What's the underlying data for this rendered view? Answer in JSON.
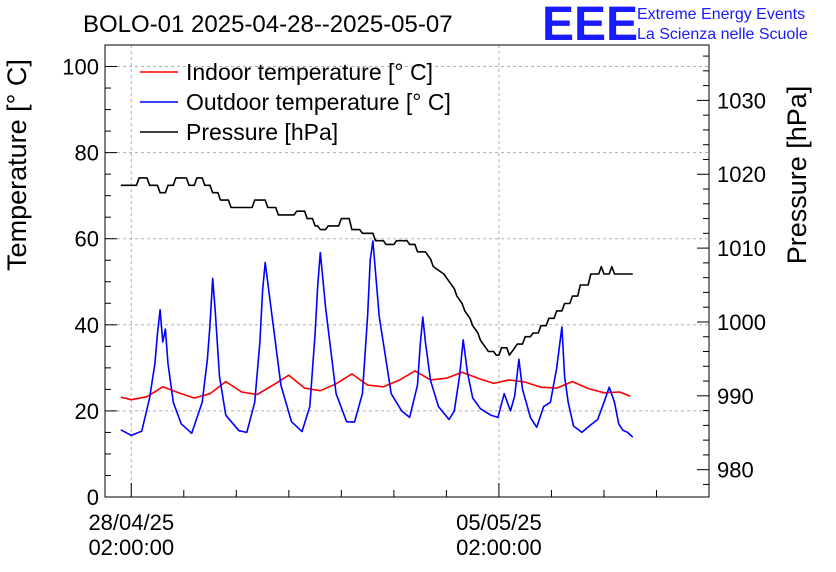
{
  "chart_data": {
    "type": "line",
    "title": "BOLO-01 2025-04-28--2025-05-07",
    "ylabel_left": "Temperature [° C]",
    "ylabel_right": "Pressure [hPa]",
    "ylim_left": [
      0,
      105
    ],
    "ylim_right": [
      976.3,
      1037.5
    ],
    "xlim_days": [
      -0.5,
      11.0
    ],
    "x_unit": "days since 28/04/25 02:00:00",
    "grid": true,
    "legend_position": "top-left",
    "left_ticks": [
      {
        "value": 0,
        "label": "0"
      },
      {
        "value": 20,
        "label": "20"
      },
      {
        "value": 40,
        "label": "40"
      },
      {
        "value": 60,
        "label": "60"
      },
      {
        "value": 80,
        "label": "80"
      },
      {
        "value": 100,
        "label": "100"
      }
    ],
    "right_ticks": [
      {
        "value": 980,
        "label": "980"
      },
      {
        "value": 990,
        "label": "990"
      },
      {
        "value": 1000,
        "label": "1000"
      },
      {
        "value": 1010,
        "label": "1010"
      },
      {
        "value": 1020,
        "label": "1020"
      },
      {
        "value": 1030,
        "label": "1030"
      }
    ],
    "x_ticks": [
      {
        "value": 0,
        "line1": "28/04/25",
        "line2": "02:00:00"
      },
      {
        "value": 7,
        "line1": "05/05/25",
        "line2": "02:00:00"
      }
    ],
    "series": [
      {
        "name": "Indoor temperature [° C]",
        "axis": "left",
        "color": "#ff0000",
        "x": [
          -0.2,
          0.0,
          0.3,
          0.6,
          0.9,
          1.2,
          1.5,
          1.8,
          2.1,
          2.4,
          2.7,
          3.0,
          3.3,
          3.6,
          3.9,
          4.2,
          4.5,
          4.8,
          5.1,
          5.4,
          5.7,
          6.0,
          6.3,
          6.6,
          6.9,
          7.2,
          7.5,
          7.8,
          8.1,
          8.4,
          8.7,
          9.0,
          9.3,
          9.5
        ],
        "values": [
          23.2,
          22.6,
          23.3,
          25.6,
          24.2,
          23.0,
          24.0,
          26.8,
          24.4,
          23.8,
          26.0,
          28.3,
          25.3,
          24.7,
          26.3,
          28.6,
          26.0,
          25.6,
          27.1,
          29.3,
          27.2,
          27.6,
          29.0,
          27.6,
          26.4,
          27.2,
          26.7,
          25.5,
          25.3,
          26.8,
          25.2,
          24.2,
          24.4,
          23.4
        ]
      },
      {
        "name": "Outdoor temperature [° C]",
        "axis": "left",
        "color": "#0000ff",
        "x": [
          -0.2,
          0.0,
          0.2,
          0.35,
          0.45,
          0.5,
          0.55,
          0.6,
          0.65,
          0.7,
          0.8,
          0.95,
          1.15,
          1.35,
          1.45,
          1.5,
          1.55,
          1.6,
          1.68,
          1.8,
          2.05,
          2.2,
          2.35,
          2.45,
          2.5,
          2.55,
          2.65,
          2.85,
          3.05,
          3.25,
          3.4,
          3.5,
          3.55,
          3.6,
          3.7,
          3.9,
          4.1,
          4.25,
          4.4,
          4.5,
          4.55,
          4.6,
          4.72,
          4.95,
          5.15,
          5.3,
          5.45,
          5.5,
          5.55,
          5.6,
          5.7,
          5.85,
          6.05,
          6.15,
          6.25,
          6.32,
          6.4,
          6.5,
          6.65,
          6.85,
          6.98,
          7.1,
          7.22,
          7.3,
          7.38,
          7.45,
          7.52,
          7.6,
          7.72,
          7.85,
          7.98,
          8.1,
          8.2,
          8.25,
          8.32,
          8.42,
          8.58,
          8.72,
          8.88,
          9.0,
          9.1,
          9.2,
          9.28,
          9.36,
          9.45,
          9.55
        ],
        "values": [
          15.6,
          14.3,
          15.3,
          23.0,
          31.0,
          38.0,
          43.5,
          36.0,
          39.0,
          31.0,
          22.0,
          17.0,
          14.8,
          22.0,
          32.0,
          40.0,
          50.8,
          43.0,
          28.0,
          19.0,
          15.4,
          15.0,
          22.0,
          36.0,
          48.0,
          54.5,
          45.0,
          26.0,
          17.5,
          15.2,
          21.0,
          38.0,
          49.0,
          56.8,
          44.0,
          24.0,
          17.5,
          17.4,
          24.0,
          42.0,
          55.0,
          59.5,
          42.0,
          24.0,
          20.0,
          18.5,
          26.0,
          35.0,
          41.8,
          36.0,
          27.0,
          21.0,
          18.0,
          20.0,
          28.0,
          36.5,
          29.0,
          23.0,
          20.5,
          19.0,
          18.5,
          24.0,
          20.0,
          23.5,
          32.0,
          25.0,
          22.0,
          18.5,
          16.2,
          21.0,
          22.0,
          30.0,
          39.5,
          28.0,
          22.0,
          16.5,
          15.0,
          16.5,
          18.0,
          22.0,
          25.5,
          22.0,
          17.0,
          15.5,
          15.0,
          13.9
        ]
      },
      {
        "name": "Pressure [hPa]",
        "axis": "right",
        "color": "#000000",
        "x": [
          -0.2,
          0.1,
          0.15,
          0.3,
          0.35,
          0.5,
          0.55,
          0.65,
          0.7,
          0.8,
          0.85,
          1.05,
          1.1,
          1.2,
          1.25,
          1.35,
          1.4,
          1.5,
          1.55,
          1.65,
          1.7,
          1.85,
          1.9,
          2.3,
          2.35,
          2.55,
          2.6,
          2.75,
          2.8,
          3.1,
          3.15,
          3.3,
          3.35,
          3.45,
          3.5,
          3.55,
          3.6,
          3.7,
          3.75,
          3.95,
          4.0,
          4.15,
          4.2,
          4.35,
          4.4,
          4.6,
          4.65,
          4.8,
          4.85,
          5.0,
          5.05,
          5.25,
          5.3,
          5.4,
          5.45,
          5.6,
          5.7,
          5.75,
          5.95,
          6.05,
          6.15,
          6.2,
          6.3,
          6.35,
          6.45,
          6.5,
          6.6,
          6.65,
          6.75,
          6.8,
          6.9,
          6.95,
          7.0,
          7.05,
          7.15,
          7.2,
          7.3,
          7.35,
          7.45,
          7.5,
          7.6,
          7.65,
          7.75,
          7.8,
          7.9,
          7.95,
          8.05,
          8.1,
          8.2,
          8.25,
          8.35,
          8.4,
          8.5,
          8.55,
          8.7,
          8.75,
          8.9,
          8.95,
          9.0,
          9.1,
          9.15,
          9.2,
          9.45,
          9.55
        ],
        "values": [
          1018.5,
          1018.5,
          1019.5,
          1019.5,
          1018.5,
          1018.5,
          1017.5,
          1017.5,
          1018.5,
          1018.5,
          1019.5,
          1019.5,
          1018.5,
          1018.5,
          1019.5,
          1019.5,
          1018.5,
          1018.5,
          1017.5,
          1017.5,
          1016.5,
          1016.5,
          1015.5,
          1015.5,
          1016.5,
          1016.5,
          1015.5,
          1015.5,
          1014.5,
          1014.5,
          1015.0,
          1015.0,
          1014.0,
          1014.0,
          1013.0,
          1013.0,
          1012.5,
          1012.5,
          1013.0,
          1013.0,
          1014.0,
          1014.0,
          1012.5,
          1012.5,
          1012.0,
          1012.0,
          1011.0,
          1011.0,
          1010.5,
          1010.5,
          1011.0,
          1011.0,
          1010.5,
          1010.5,
          1009.5,
          1009.5,
          1008.5,
          1007.5,
          1006.5,
          1005.5,
          1004.5,
          1003.5,
          1002.5,
          1001.5,
          1000.5,
          999.5,
          998.5,
          997.5,
          996.5,
          996.0,
          996.0,
          995.5,
          995.5,
          996.5,
          996.5,
          995.5,
          996.5,
          997.0,
          997.0,
          998.0,
          998.0,
          998.5,
          998.5,
          999.5,
          999.5,
          1000.5,
          1000.5,
          1001.5,
          1001.5,
          1002.5,
          1002.5,
          1003.5,
          1003.5,
          1005.0,
          1005.0,
          1006.5,
          1006.5,
          1007.5,
          1006.5,
          1006.5,
          1007.5,
          1006.5,
          1006.5,
          1006.5
        ]
      }
    ]
  },
  "logo": {
    "letters": "EEE",
    "line1": "Extreme Energy Events",
    "line2": "La Scienza nelle Scuole"
  }
}
